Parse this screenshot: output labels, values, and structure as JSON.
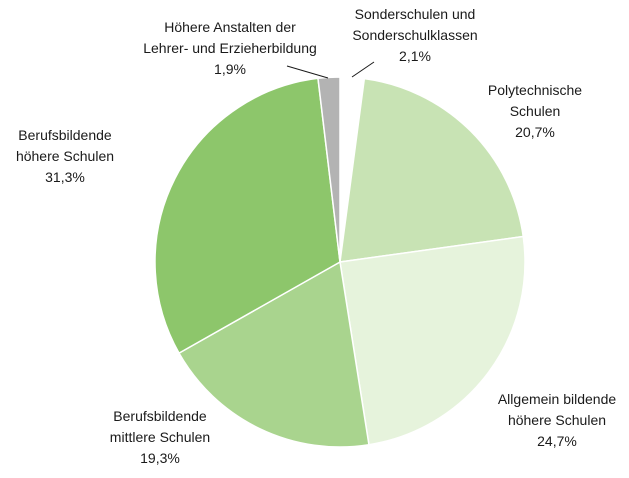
{
  "chart_data": {
    "type": "pie",
    "categories": [
      "Sonderschulen und\nSonderschulklassen",
      "Polytechnische\nSchulen",
      "Allgemein bildende\nhöhere Schulen",
      "Berufsbildende\nmittlere Schulen",
      "Berufsbildende\nhöhere Schulen",
      "Höhere Anstalten der\nLehrer- und Erzieherbildung"
    ],
    "values": [
      2.1,
      20.7,
      24.7,
      19.3,
      31.3,
      1.9
    ],
    "value_labels": [
      "2,1%",
      "20,7%",
      "24,7%",
      "19,3%",
      "31,3%",
      "1,9%"
    ],
    "colors": [
      "#ffffff",
      "#c8e3b4",
      "#e6f3dc",
      "#a9d48e",
      "#8dc66b",
      "#b3b3b3"
    ]
  }
}
